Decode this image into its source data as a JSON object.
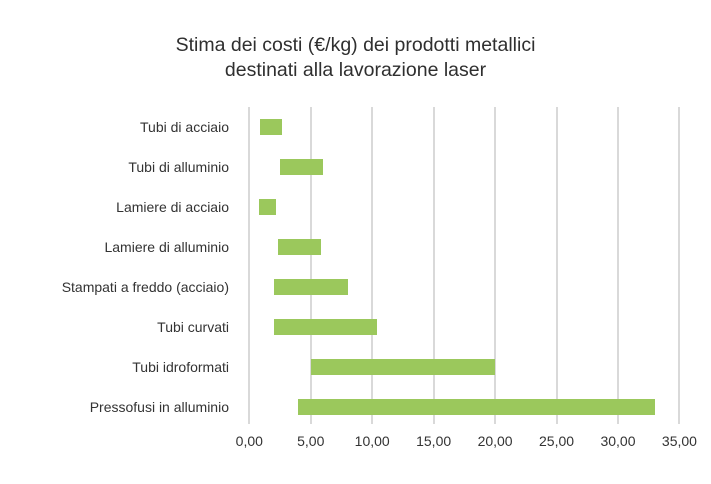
{
  "chart_data": {
    "type": "bar",
    "orientation": "horizontal",
    "subtype": "floating-range",
    "title": "Stima dei costi (€/kg) dei prodotti metallici destinati alla lavorazione laser",
    "title_lines": [
      "Stima dei costi (€/kg) dei prodotti metallici",
      "destinati alla lavorazione laser"
    ],
    "xlabel": "",
    "ylabel": "",
    "xlim": [
      0,
      35
    ],
    "x_ticks": [
      "0,00",
      "5,00",
      "10,00",
      "15,00",
      "20,00",
      "25,00",
      "30,00",
      "35,00"
    ],
    "x_tick_values": [
      0,
      5,
      10,
      15,
      20,
      25,
      30,
      35
    ],
    "grid": true,
    "legend": null,
    "bar_color": "#9bc85c",
    "categories": [
      "Tubi di acciaio",
      "Tubi di alluminio",
      "Lamiere di acciaio",
      "Lamiere di alluminio",
      "Stampati a freddo (acciaio)",
      "Tubi curvati",
      "Tubi idroformati",
      "Pressofusi in alluminio"
    ],
    "ranges": [
      {
        "min": 0.9,
        "max": 2.7
      },
      {
        "min": 2.5,
        "max": 6.0
      },
      {
        "min": 0.8,
        "max": 2.2
      },
      {
        "min": 2.3,
        "max": 5.8
      },
      {
        "min": 2.0,
        "max": 8.0
      },
      {
        "min": 2.0,
        "max": 10.4
      },
      {
        "min": 5.0,
        "max": 20.0
      },
      {
        "min": 4.0,
        "max": 33.0
      }
    ]
  }
}
